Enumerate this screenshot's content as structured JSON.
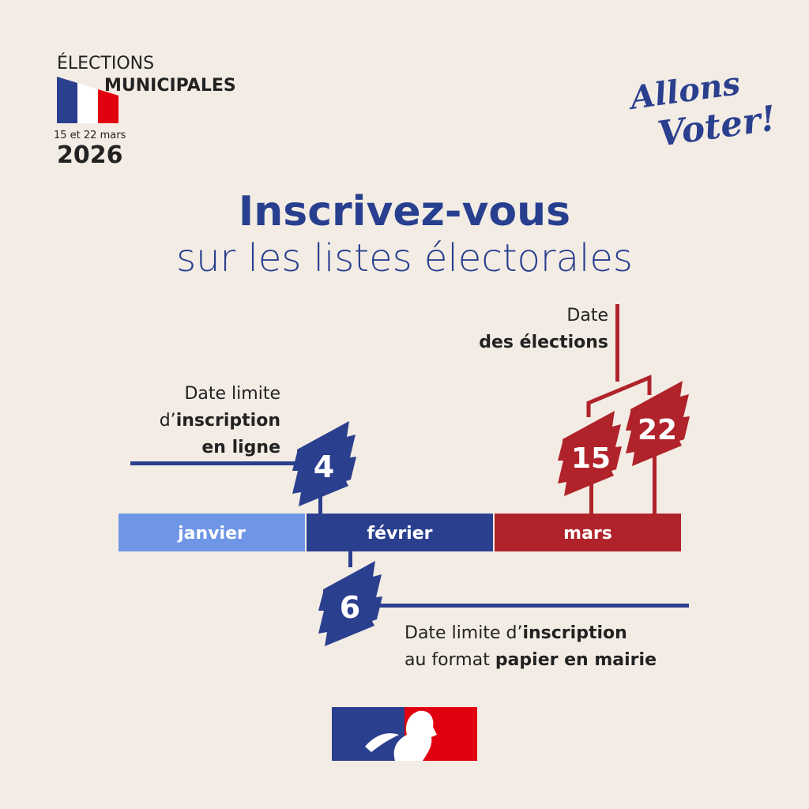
{
  "header": {
    "line1": "ÉLECTIONS",
    "line2": "MUNICIPALES",
    "dates": "15 et 22 mars",
    "year": "2026"
  },
  "slogan": {
    "line1": "Allons",
    "line2": "Voter!"
  },
  "title": {
    "bold": "Inscrivez-vous",
    "light": "sur les listes électorales"
  },
  "timeline": {
    "months": [
      {
        "label": "janvier",
        "color": "#6f96e6"
      },
      {
        "label": "février",
        "color": "#2b3f8f"
      },
      {
        "label": "mars",
        "color": "#b0232a"
      }
    ],
    "online_deadline": {
      "day": "4",
      "l1": "Date limite",
      "l2a": "d’",
      "l2b": "inscription",
      "l3": "en ligne"
    },
    "paper_deadline": {
      "day": "6",
      "l1a": "Date limite d’",
      "l1b": "inscription",
      "l2a": "au format ",
      "l2b": "papier en mairie"
    },
    "elections": {
      "day1": "15",
      "day2": "22",
      "l1": "Date",
      "l2": "des élections"
    }
  },
  "colors": {
    "background": "#f3ece4",
    "blue": "#2b3f8f",
    "light_blue": "#6f96e6",
    "red": "#b0232a"
  },
  "logo": "marianne-logo"
}
